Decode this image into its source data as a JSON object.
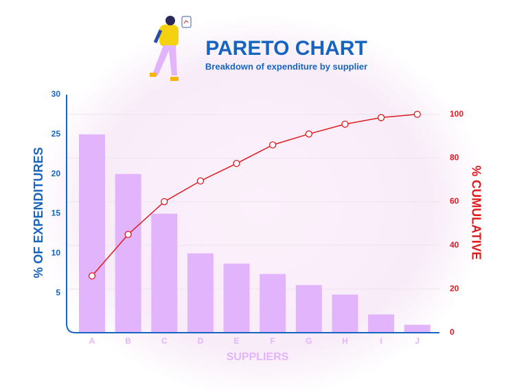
{
  "chart_data": {
    "type": "pareto",
    "title": "PARETO CHART",
    "subtitle": "Breakdown of expenditure by supplier",
    "x_label": "SUPPLIERS",
    "y_label": "% OF EXPENDITURES",
    "y2_label": "% CUMULATIVE",
    "categories": [
      "A",
      "B",
      "C",
      "D",
      "E",
      "F",
      "G",
      "H",
      "I",
      "J"
    ],
    "series": [
      {
        "name": "% of expenditures",
        "color": "#e2b4fb",
        "values": [
          25,
          20,
          15,
          10,
          8.7,
          7.4,
          6,
          4.8,
          2.3,
          1
        ]
      },
      {
        "name": "% cumulative",
        "color": "#e0191c",
        "axis": "y2",
        "values": [
          26,
          45,
          60,
          69.5,
          77.5,
          86,
          91,
          95.5,
          98.5,
          100
        ]
      }
    ],
    "ylim": [
      0,
      30
    ],
    "yticks": [
      5,
      10,
      15,
      20,
      25,
      30
    ],
    "y2lim": [
      0,
      109
    ],
    "y2ticks": [
      0,
      20,
      40,
      60,
      80,
      100
    ],
    "grid": true
  }
}
